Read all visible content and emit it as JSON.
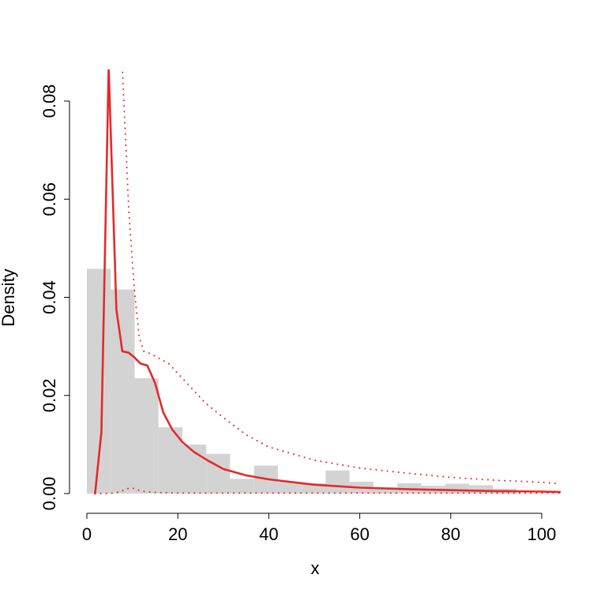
{
  "chart_data": {
    "type": "bar",
    "title": "",
    "xlabel": "x",
    "ylabel": "Density",
    "xlim": [
      0,
      104
    ],
    "ylim": [
      0,
      0.087
    ],
    "x_ticks": [
      0,
      20,
      40,
      60,
      80,
      100
    ],
    "y_ticks": [
      0.0,
      0.02,
      0.04,
      0.06,
      0.08
    ],
    "x_tick_labels": [
      "0",
      "20",
      "40",
      "60",
      "80",
      "100"
    ],
    "y_tick_labels": [
      "0.00",
      "0.02",
      "0.04",
      "0.06",
      "0.08"
    ],
    "grid": false,
    "legend": "none",
    "histogram": {
      "bin_edges": [
        0,
        5.25,
        10.5,
        15.75,
        21,
        26.25,
        31.5,
        36.75,
        42,
        47.25,
        52.5,
        57.75,
        63,
        68.25,
        73.5,
        78.75,
        84,
        89.25,
        94.5
      ],
      "values": [
        0.0458,
        0.0416,
        0.0235,
        0.0135,
        0.01,
        0.0081,
        0.003,
        0.0057,
        0.0024,
        0.0021,
        0.0047,
        0.0024,
        0.0013,
        0.0021,
        0.0016,
        0.002,
        0.0017,
        0.001
      ],
      "color": "#d3d3d3"
    },
    "series": [
      {
        "style": "solid",
        "color": "#e32a2a",
        "x": [
          1.8,
          3.2,
          4.8,
          6.5,
          7.8,
          9.2,
          10.4,
          11.8,
          13.3,
          15,
          16.8,
          18.8,
          21,
          23.5,
          26.5,
          30,
          35,
          40,
          50,
          60,
          70,
          80,
          90,
          100,
          104
        ],
        "y": [
          0.0,
          0.0125,
          0.087,
          0.0375,
          0.029,
          0.0287,
          0.0278,
          0.0265,
          0.0261,
          0.0225,
          0.0165,
          0.013,
          0.0105,
          0.0085,
          0.0068,
          0.005,
          0.0037,
          0.0029,
          0.0018,
          0.0012,
          0.0009,
          0.0007,
          0.0005,
          0.0004,
          0.0003
        ]
      },
      {
        "style": "dotted",
        "color": "#e32a2a",
        "x": [
          7.8,
          9.2,
          10.4,
          11.5,
          12.5,
          14,
          16,
          18,
          20,
          23,
          26,
          30,
          35,
          40,
          50,
          60,
          70,
          80,
          90,
          100,
          104
        ],
        "y": [
          0.087,
          0.058,
          0.042,
          0.032,
          0.029,
          0.0285,
          0.0275,
          0.0265,
          0.0245,
          0.0215,
          0.0185,
          0.0155,
          0.012,
          0.0095,
          0.0068,
          0.0052,
          0.0042,
          0.0033,
          0.0027,
          0.0023,
          0.002
        ]
      },
      {
        "style": "dotted",
        "color": "#e32a2a",
        "x": [
          1.8,
          5,
          7,
          8.5,
          9.5,
          10.5,
          12,
          14,
          16,
          20,
          30,
          50,
          104
        ],
        "y": [
          0.0,
          0.0,
          0.0003,
          0.0008,
          0.0012,
          0.001,
          0.0005,
          0.0003,
          0.0002,
          0.0001,
          0.0001,
          0.0001,
          0.0001
        ]
      }
    ]
  }
}
